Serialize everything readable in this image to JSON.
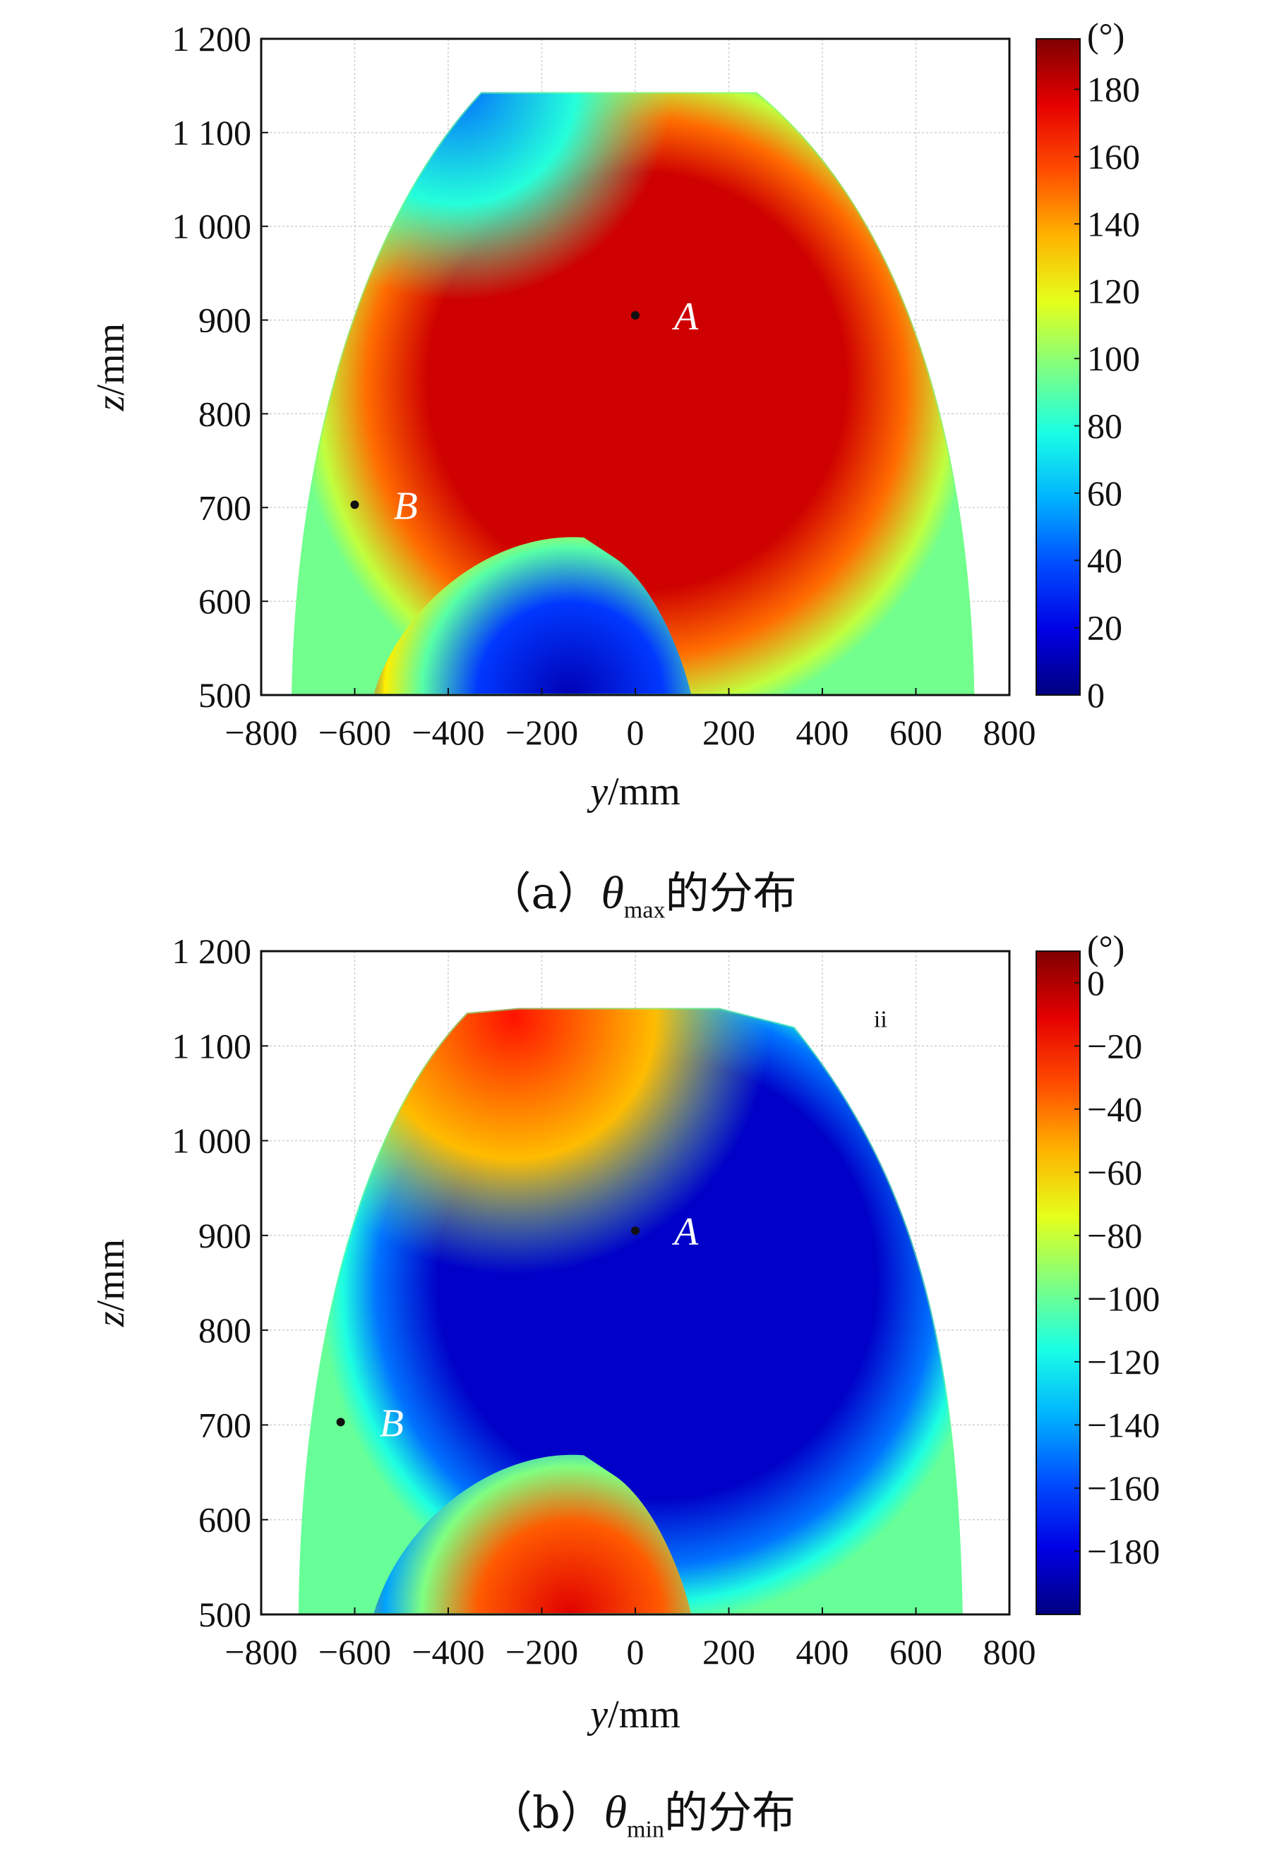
{
  "chart_data": [
    {
      "type": "heatmap",
      "panel": "(a)",
      "caption": {
        "prefix": "（a）",
        "symbol": "θ",
        "subscript": "max",
        "suffix": "的分布"
      },
      "xlabel": {
        "var": "y",
        "unit": "/mm"
      },
      "ylabel": {
        "var": "z",
        "unit": "/mm"
      },
      "xlim": [
        -800,
        800
      ],
      "ylim": [
        500,
        1200
      ],
      "x_ticks": [
        -800,
        -600,
        -400,
        -200,
        0,
        200,
        400,
        600,
        800
      ],
      "x_tick_labels": [
        "−800",
        "−600",
        "−400",
        "−200",
        "0",
        "200",
        "400",
        "600",
        "800"
      ],
      "y_ticks": [
        500,
        600,
        700,
        800,
        900,
        1000,
        1100,
        1200
      ],
      "y_tick_labels": [
        "500",
        "600",
        "700",
        "800",
        "900",
        "1 000",
        "1 100",
        "1 200"
      ],
      "grid": true,
      "colorbar": {
        "unit": "(°)",
        "range": [
          0,
          195
        ],
        "ticks": [
          0,
          20,
          40,
          60,
          80,
          100,
          120,
          140,
          160,
          180
        ],
        "tick_labels": [
          "0",
          "20",
          "40",
          "60",
          "80",
          "100",
          "120",
          "140",
          "160",
          "180"
        ],
        "colormap": "jet"
      },
      "points": [
        {
          "label": "A",
          "y": 0,
          "z": 905,
          "label_color": "#ffffff"
        },
        {
          "label": "B",
          "y": -600,
          "z": 703,
          "label_color": "#ffffff"
        }
      ],
      "region_values": [
        {
          "region": "central domain containing A",
          "value": 180
        },
        {
          "region": "lower inner lobe near y≈-150",
          "value": 10
        },
        {
          "region": "upper-left edge near y≈-350, z≈1140",
          "value": 45
        },
        {
          "region": "outer edges",
          "value": 95
        }
      ]
    },
    {
      "type": "heatmap",
      "panel": "(b)",
      "caption": {
        "prefix": "（b）",
        "symbol": "θ",
        "subscript": "min",
        "suffix": "的分布"
      },
      "xlabel": {
        "var": "y",
        "unit": "/mm"
      },
      "ylabel": {
        "var": "z",
        "unit": "/mm"
      },
      "xlim": [
        -800,
        800
      ],
      "ylim": [
        500,
        1200
      ],
      "x_ticks": [
        -800,
        -600,
        -400,
        -200,
        0,
        200,
        400,
        600,
        800
      ],
      "x_tick_labels": [
        "−800",
        "−600",
        "−400",
        "−200",
        "0",
        "200",
        "400",
        "600",
        "800"
      ],
      "y_ticks": [
        500,
        600,
        700,
        800,
        900,
        1000,
        1100,
        1200
      ],
      "y_tick_labels": [
        "500",
        "600",
        "700",
        "800",
        "900",
        "1 000",
        "1 100",
        "1 200"
      ],
      "grid": true,
      "annotation": "ii",
      "colorbar": {
        "unit": "(°)",
        "range": [
          -200,
          10
        ],
        "ticks": [
          0,
          -20,
          -40,
          -60,
          -80,
          -100,
          -120,
          -140,
          -160,
          -180
        ],
        "tick_labels": [
          "0",
          "−20",
          "−40",
          "−60",
          "−80",
          "−100",
          "−120",
          "−140",
          "−160",
          "−180"
        ],
        "colormap": "jet"
      },
      "points": [
        {
          "label": "A",
          "y": 0,
          "z": 905,
          "label_color": "#ffffff"
        },
        {
          "label": "B",
          "y": -630,
          "z": 703,
          "label_color": "#ffffff"
        }
      ],
      "region_values": [
        {
          "region": "central domain containing A",
          "value": -185
        },
        {
          "region": "lower inner lobe near y≈-150",
          "value": -10
        },
        {
          "region": "upper-left edge near y≈-250, z≈1100",
          "value": -20
        },
        {
          "region": "outer edges",
          "value": -100
        }
      ]
    }
  ]
}
